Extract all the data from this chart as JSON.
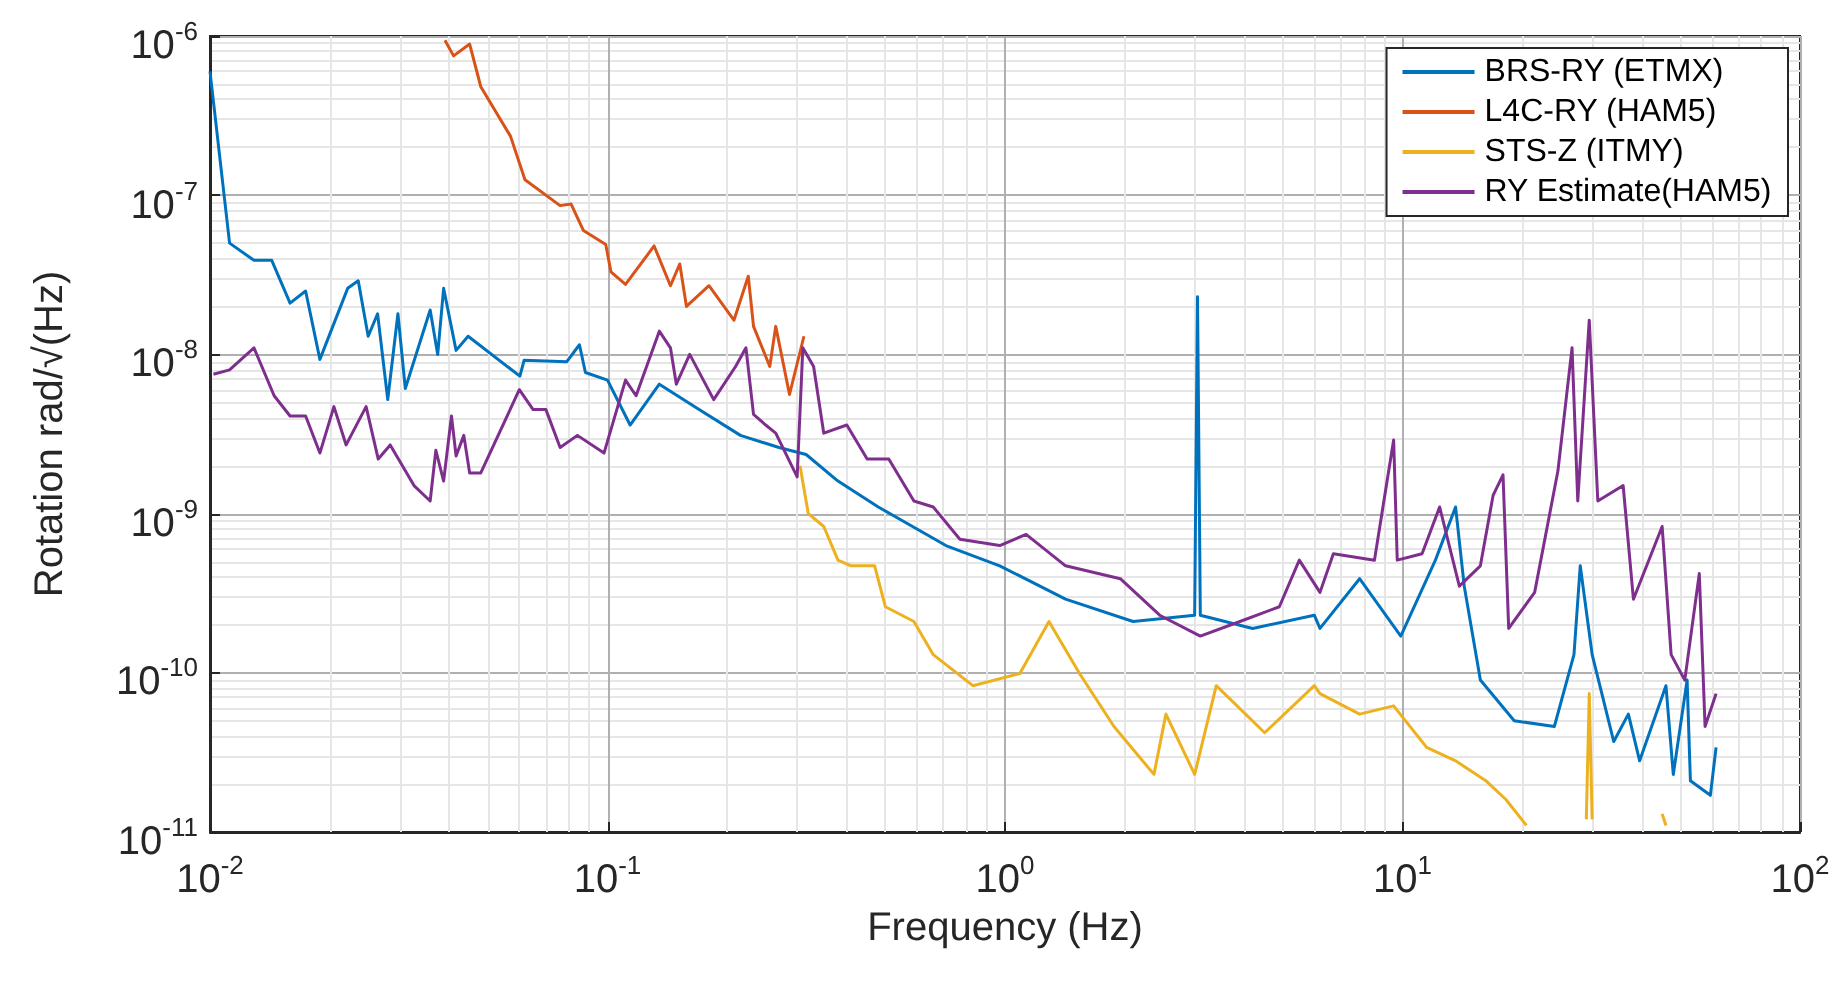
{
  "chart_data": {
    "type": "line",
    "xlabel": "Frequency (Hz)",
    "ylabel": "Rotation rad/√(Hz)",
    "log": "xy",
    "grid": true,
    "legend": "top right",
    "marker": "none",
    "line_style": "solid",
    "xlim": [
      0.01,
      100
    ],
    "ylim": [
      1e-11,
      1e-06
    ],
    "xticks": [
      {
        "value": 0.01,
        "label": "10$^{-2}$"
      },
      {
        "value": 0.1,
        "label": "10$^{-1}$"
      },
      {
        "value": 1,
        "label": "10$^{0}$"
      },
      {
        "value": 10,
        "label": "10$^{1}$"
      },
      {
        "value": 100,
        "label": "10$^{2}$"
      }
    ],
    "yticks": [
      {
        "value": 1e-11,
        "label": "10$^{-11}$"
      },
      {
        "value": 1e-10,
        "label": "10$^{-10}$"
      },
      {
        "value": 1e-09,
        "label": "10$^{-9}$"
      },
      {
        "value": 1e-08,
        "label": "10$^{-8}$"
      },
      {
        "value": 1e-07,
        "label": "10$^{-7}$"
      },
      {
        "value": 1e-06,
        "label": "10$^{-6}$"
      }
    ],
    "series": [
      {
        "name": "BRS-RY (ETMX)",
        "color": "#0072bd",
        "x": [
          0.01,
          0.0112,
          0.0129,
          0.0143,
          0.0159,
          0.0174,
          0.0189,
          0.0222,
          0.0236,
          0.025,
          0.0264,
          0.028,
          0.0297,
          0.031,
          0.0358,
          0.0374,
          0.0387,
          0.0416,
          0.0446,
          0.0602,
          0.0617,
          0.079,
          0.085,
          0.088,
          0.1,
          0.114,
          0.135,
          0.17,
          0.216,
          0.27,
          0.316,
          0.38,
          0.48,
          0.71,
          0.97,
          1.42,
          2.1,
          3.0,
          3.05,
          3.1,
          4.2,
          6.0,
          6.2,
          7.8,
          9.9,
          12.1,
          13.6,
          14.3,
          15.7,
          19.1,
          24.1,
          27,
          28,
          30,
          34,
          37,
          39.5,
          46,
          48,
          52,
          53,
          59.5,
          61.5
        ],
        "values": [
          6e-07,
          5e-08,
          3.9e-08,
          3.9e-08,
          2.1e-08,
          2.5e-08,
          9.3e-09,
          2.6e-08,
          2.9e-08,
          1.3e-08,
          1.8e-08,
          5.2e-09,
          1.8e-08,
          6.1e-09,
          1.9e-08,
          1e-08,
          2.6e-08,
          1.06e-08,
          1.3e-08,
          7.3e-09,
          9.2e-09,
          9e-09,
          1.15e-08,
          7.7e-09,
          6.9e-09,
          3.6e-09,
          6.5e-09,
          4.5e-09,
          3.1e-09,
          2.6e-09,
          2.35e-09,
          1.6e-09,
          1.1e-09,
          6.3e-10,
          4.7e-10,
          2.9e-10,
          2.1e-10,
          2.3e-10,
          2.3e-08,
          2.3e-10,
          1.9e-10,
          2.3e-10,
          1.9e-10,
          3.9e-10,
          1.7e-10,
          5.1e-10,
          1.1e-09,
          3.5e-10,
          9e-11,
          5e-11,
          4.6e-11,
          1.3e-10,
          4.7e-10,
          1.3e-10,
          3.7e-11,
          5.5e-11,
          2.8e-11,
          8.3e-11,
          2.3e-11,
          9e-11,
          2.1e-11,
          1.7e-11,
          3.4e-11
        ]
      },
      {
        "name": "L4C-RY (HAM5)",
        "color": "#d95319",
        "x": [
          0.039,
          0.041,
          0.045,
          0.048,
          0.057,
          0.062,
          0.076,
          0.081,
          0.087,
          0.099,
          0.102,
          0.111,
          0.131,
          0.144,
          0.152,
          0.158,
          0.18,
          0.208,
          0.226,
          0.233,
          0.256,
          0.265,
          0.287,
          0.312
        ],
        "values": [
          9.4e-07,
          7.5e-07,
          8.9e-07,
          4.8e-07,
          2.35e-07,
          1.25e-07,
          8.6e-08,
          8.8e-08,
          6e-08,
          4.9e-08,
          3.3e-08,
          2.75e-08,
          4.8e-08,
          2.7e-08,
          3.7e-08,
          2e-08,
          2.7e-08,
          1.64e-08,
          3.1e-08,
          1.5e-08,
          8.4e-09,
          1.5e-08,
          5.6e-09,
          1.3e-08
        ]
      },
      {
        "name": "STS-Z (ITMY)",
        "color": "#edb120",
        "x": [
          0.305,
          0.32,
          0.35,
          0.38,
          0.41,
          0.47,
          0.5,
          0.59,
          0.66,
          0.83,
          1.09,
          1.29,
          1.54,
          1.88,
          2.37,
          2.54,
          3.0,
          3.4,
          4.5,
          6.0,
          6.2,
          7.8,
          9.5,
          11.5,
          13.6,
          16.2,
          18.2,
          20.5,
          22,
          29,
          29.5,
          30,
          38,
          45,
          46
        ],
        "values": [
          2e-09,
          1e-09,
          8.3e-10,
          5.1e-10,
          4.7e-10,
          4.7e-10,
          2.6e-10,
          2.1e-10,
          1.3e-10,
          8.3e-11,
          9.9e-11,
          2.1e-10,
          9.9e-11,
          4.6e-11,
          2.3e-11,
          5.5e-11,
          2.3e-11,
          8.3e-11,
          4.2e-11,
          8.3e-11,
          7.4e-11,
          5.5e-11,
          6.2e-11,
          3.4e-11,
          2.8e-11,
          2.1e-11,
          1.6e-11,
          1.1e-11,
          null,
          1.2e-11,
          7.4e-11,
          1.2e-11,
          null,
          1.3e-11,
          1.1e-11
        ]
      },
      {
        "name": "RY Estimate(HAM5)",
        "color": "#7e2f8e",
        "x": [
          0.0102,
          0.0112,
          0.0129,
          0.0145,
          0.0159,
          0.0174,
          0.0189,
          0.0205,
          0.022,
          0.0247,
          0.0265,
          0.0284,
          0.0326,
          0.0358,
          0.037,
          0.0387,
          0.0405,
          0.0416,
          0.0435,
          0.045,
          0.048,
          0.06,
          0.065,
          0.07,
          0.076,
          0.084,
          0.098,
          0.111,
          0.118,
          0.135,
          0.144,
          0.149,
          0.161,
          0.185,
          0.21,
          0.223,
          0.233,
          0.25,
          0.265,
          0.3,
          0.31,
          0.33,
          0.35,
          0.4,
          0.45,
          0.51,
          0.59,
          0.66,
          0.77,
          0.97,
          1.13,
          1.42,
          1.95,
          2.45,
          3.1,
          3.9,
          4.9,
          5.5,
          6.2,
          6.7,
          8.5,
          9.5,
          9.7,
          11.2,
          12.4,
          13.9,
          15.7,
          16.9,
          17.9,
          18.5,
          21.5,
          24.6,
          26.7,
          27.6,
          29.5,
          31,
          35.9,
          38.1,
          45,
          47.4,
          51.3,
          55.8,
          57.7,
          61.5
        ],
        "values": [
          7.5e-09,
          8e-09,
          1.1e-08,
          5.5e-09,
          4.1e-09,
          4.1e-09,
          2.4e-09,
          4.7e-09,
          2.7e-09,
          4.7e-09,
          2.2e-09,
          2.7e-09,
          1.5e-09,
          1.2e-09,
          2.5e-09,
          1.6e-09,
          4.1e-09,
          2.3e-09,
          3.1e-09,
          1.8e-09,
          1.8e-09,
          6e-09,
          4.5e-09,
          4.5e-09,
          2.6e-09,
          3.1e-09,
          2.4e-09,
          6.9e-09,
          5.5e-09,
          1.4e-08,
          1.1e-08,
          6.5e-09,
          1e-08,
          5.2e-09,
          8.4e-09,
          1.1e-08,
          4.2e-09,
          3.6e-09,
          3.2e-09,
          1.7e-09,
          1.1e-08,
          8.4e-09,
          3.2e-09,
          3.6e-09,
          2.2e-09,
          2.2e-09,
          1.2e-09,
          1.1e-09,
          6.9e-10,
          6.3e-10,
          7.4e-10,
          4.7e-10,
          3.9e-10,
          2.3e-10,
          1.7e-10,
          2.1e-10,
          2.6e-10,
          5.1e-10,
          3.2e-10,
          5.6e-10,
          5.1e-10,
          2.9e-09,
          5.1e-10,
          5.6e-10,
          1.1e-09,
          3.5e-10,
          4.7e-10,
          1.3e-09,
          1.75e-09,
          1.9e-10,
          3.2e-10,
          1.85e-09,
          1.1e-08,
          1.2e-09,
          1.64e-08,
          1.2e-09,
          1.5e-09,
          2.9e-10,
          8.3e-10,
          1.3e-10,
          9e-11,
          4.2e-10,
          4.6e-11,
          7.4e-11
        ]
      }
    ]
  }
}
